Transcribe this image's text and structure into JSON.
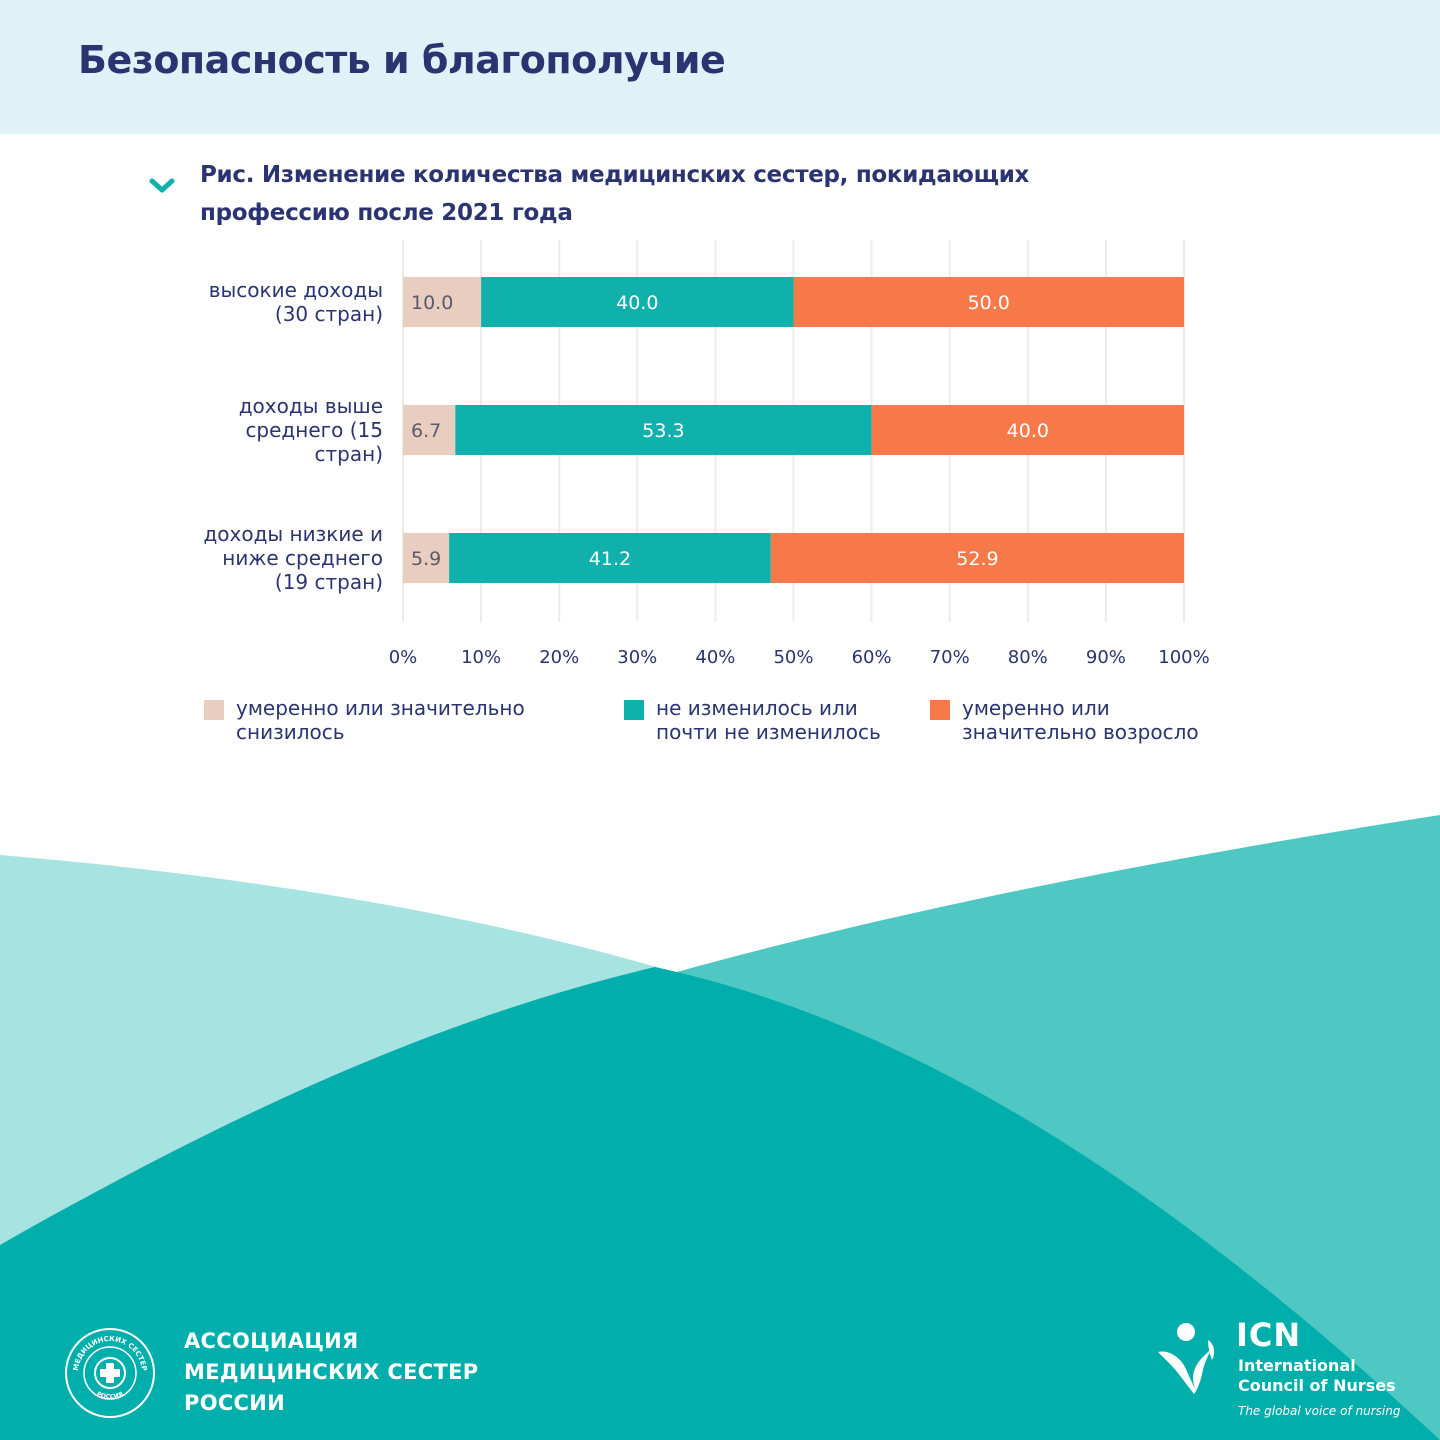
{
  "page": {
    "title": "Безопасность и благополучие",
    "figure_title": "Рис. Изменение количества медицинских сестер, покидающих профессию после 2021 года"
  },
  "colors": {
    "header_bg": "#e0f2f7",
    "title_text": "#2b3470",
    "decreased": "#e9cdbf",
    "unchanged": "#10b1ac",
    "increased": "#f7794a",
    "wave_light": "#a7e3e1",
    "wave_mid": "#4fc8c4",
    "wave_dark": "#00aeac"
  },
  "chart_data": {
    "type": "bar",
    "orientation": "horizontal",
    "stacked": true,
    "categories": [
      "высокие доходы (30 стран)",
      "доходы выше среднего (15 стран)",
      "доходы низкие и ниже среднего (19 стран)"
    ],
    "series": [
      {
        "name": "умеренно или значительно снизилось",
        "color": "#e9cdbf",
        "values": [
          10.0,
          6.7,
          5.9
        ],
        "labels": [
          "10.0",
          "6.7",
          "5.9"
        ]
      },
      {
        "name": "не изменилось или почти не изменилось",
        "color": "#10b1ac",
        "values": [
          40.0,
          53.3,
          41.2
        ],
        "labels": [
          "40.0",
          "53.3",
          "41.2"
        ]
      },
      {
        "name": "умеренно или значительно возросло",
        "color": "#f7794a",
        "values": [
          50.0,
          40.0,
          52.9
        ],
        "labels": [
          "50.0",
          "40.0",
          "52.9"
        ]
      }
    ],
    "xlim": [
      0,
      100
    ],
    "xticks": [
      "0%",
      "10%",
      "20%",
      "30%",
      "40%",
      "50%",
      "60%",
      "70%",
      "80%",
      "90%",
      "100%"
    ],
    "grid": true,
    "legend_position": "bottom"
  },
  "legend": [
    {
      "label": "умеренно или значительно\nснизилось",
      "color": "#e9cdbf"
    },
    {
      "label": "не изменилось или\nпочти не изменилось",
      "color": "#10b1ac"
    },
    {
      "label": "умеренно или\nзначительно возросло",
      "color": "#f7794a"
    }
  ],
  "footer": {
    "org_name": "АССОЦИАЦИЯ\nМЕДИЦИНСКИХ СЕСТЕР\nРОССИИ",
    "logo_ring_text": "МЕДИЦИНСКИХ СЕСТЕР",
    "logo_ring_text2": "РОССИЯ",
    "icn_abbr": "ICN",
    "icn_name": "International\nCouncil of Nurses",
    "icn_tagline": "The global voice of nursing"
  }
}
